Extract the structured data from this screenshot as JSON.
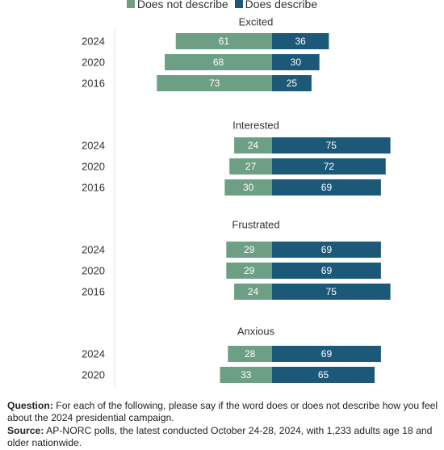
{
  "legend": [
    {
      "label": "Does not describe",
      "color": "#6d9f85"
    },
    {
      "label": "Does describe",
      "color": "#1c5878"
    }
  ],
  "chart_data": {
    "type": "bar",
    "orientation": "horizontal-diverging",
    "groups": [
      {
        "title": "Excited",
        "rows": [
          {
            "year": "2024",
            "not": 61,
            "does": 36
          },
          {
            "year": "2020",
            "not": 68,
            "does": 30
          },
          {
            "year": "2016",
            "not": 73,
            "does": 25
          }
        ]
      },
      {
        "title": "Interested",
        "rows": [
          {
            "year": "2024",
            "not": 24,
            "does": 75
          },
          {
            "year": "2020",
            "not": 27,
            "does": 72
          },
          {
            "year": "2016",
            "not": 30,
            "does": 69
          }
        ]
      },
      {
        "title": "Frustrated",
        "rows": [
          {
            "year": "2024",
            "not": 29,
            "does": 69
          },
          {
            "year": "2020",
            "not": 29,
            "does": 69
          },
          {
            "year": "2016",
            "not": 24,
            "does": 75
          }
        ]
      },
      {
        "title": "Anxious",
        "rows": [
          {
            "year": "2024",
            "not": 28,
            "does": 69
          },
          {
            "year": "2020",
            "not": 33,
            "does": 65
          }
        ]
      }
    ],
    "series": [
      {
        "name": "Does not describe",
        "key": "not",
        "color": "#6d9f85"
      },
      {
        "name": "Does describe",
        "key": "does",
        "color": "#1c5878"
      }
    ]
  },
  "footnote": {
    "question_label": "Question:",
    "question_text": "For each of the following, please say if the word does or does not describe how you feel about the 2024 presidential campaign.",
    "source_label": "Source:",
    "source_text": "AP-NORC polls, the latest conducted October 24-28, 2024, with 1,233 adults age 18 and older nationwide."
  }
}
